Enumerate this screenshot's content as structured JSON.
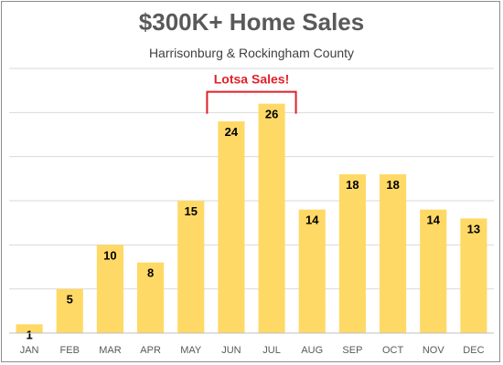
{
  "chart_data": {
    "type": "bar",
    "title": "$300K+ Home Sales",
    "subtitle": "Harrisonburg & Rockingham County",
    "categories": [
      "JAN",
      "FEB",
      "MAR",
      "APR",
      "MAY",
      "JUN",
      "JUL",
      "AUG",
      "SEP",
      "OCT",
      "NOV",
      "DEC"
    ],
    "values": [
      1,
      5,
      10,
      8,
      15,
      24,
      26,
      14,
      18,
      18,
      14,
      13
    ],
    "ylim": [
      0,
      30
    ],
    "grid": true,
    "data_labels": true,
    "annotation": {
      "text": "Lotsa Sales!",
      "spans": [
        "JUN",
        "JUL"
      ]
    }
  },
  "colors": {
    "bar": "#ffd966",
    "grid": "#d9d9d9",
    "axis": "#bfbfbf",
    "annotation": "#e0202a",
    "title": "#595959"
  }
}
